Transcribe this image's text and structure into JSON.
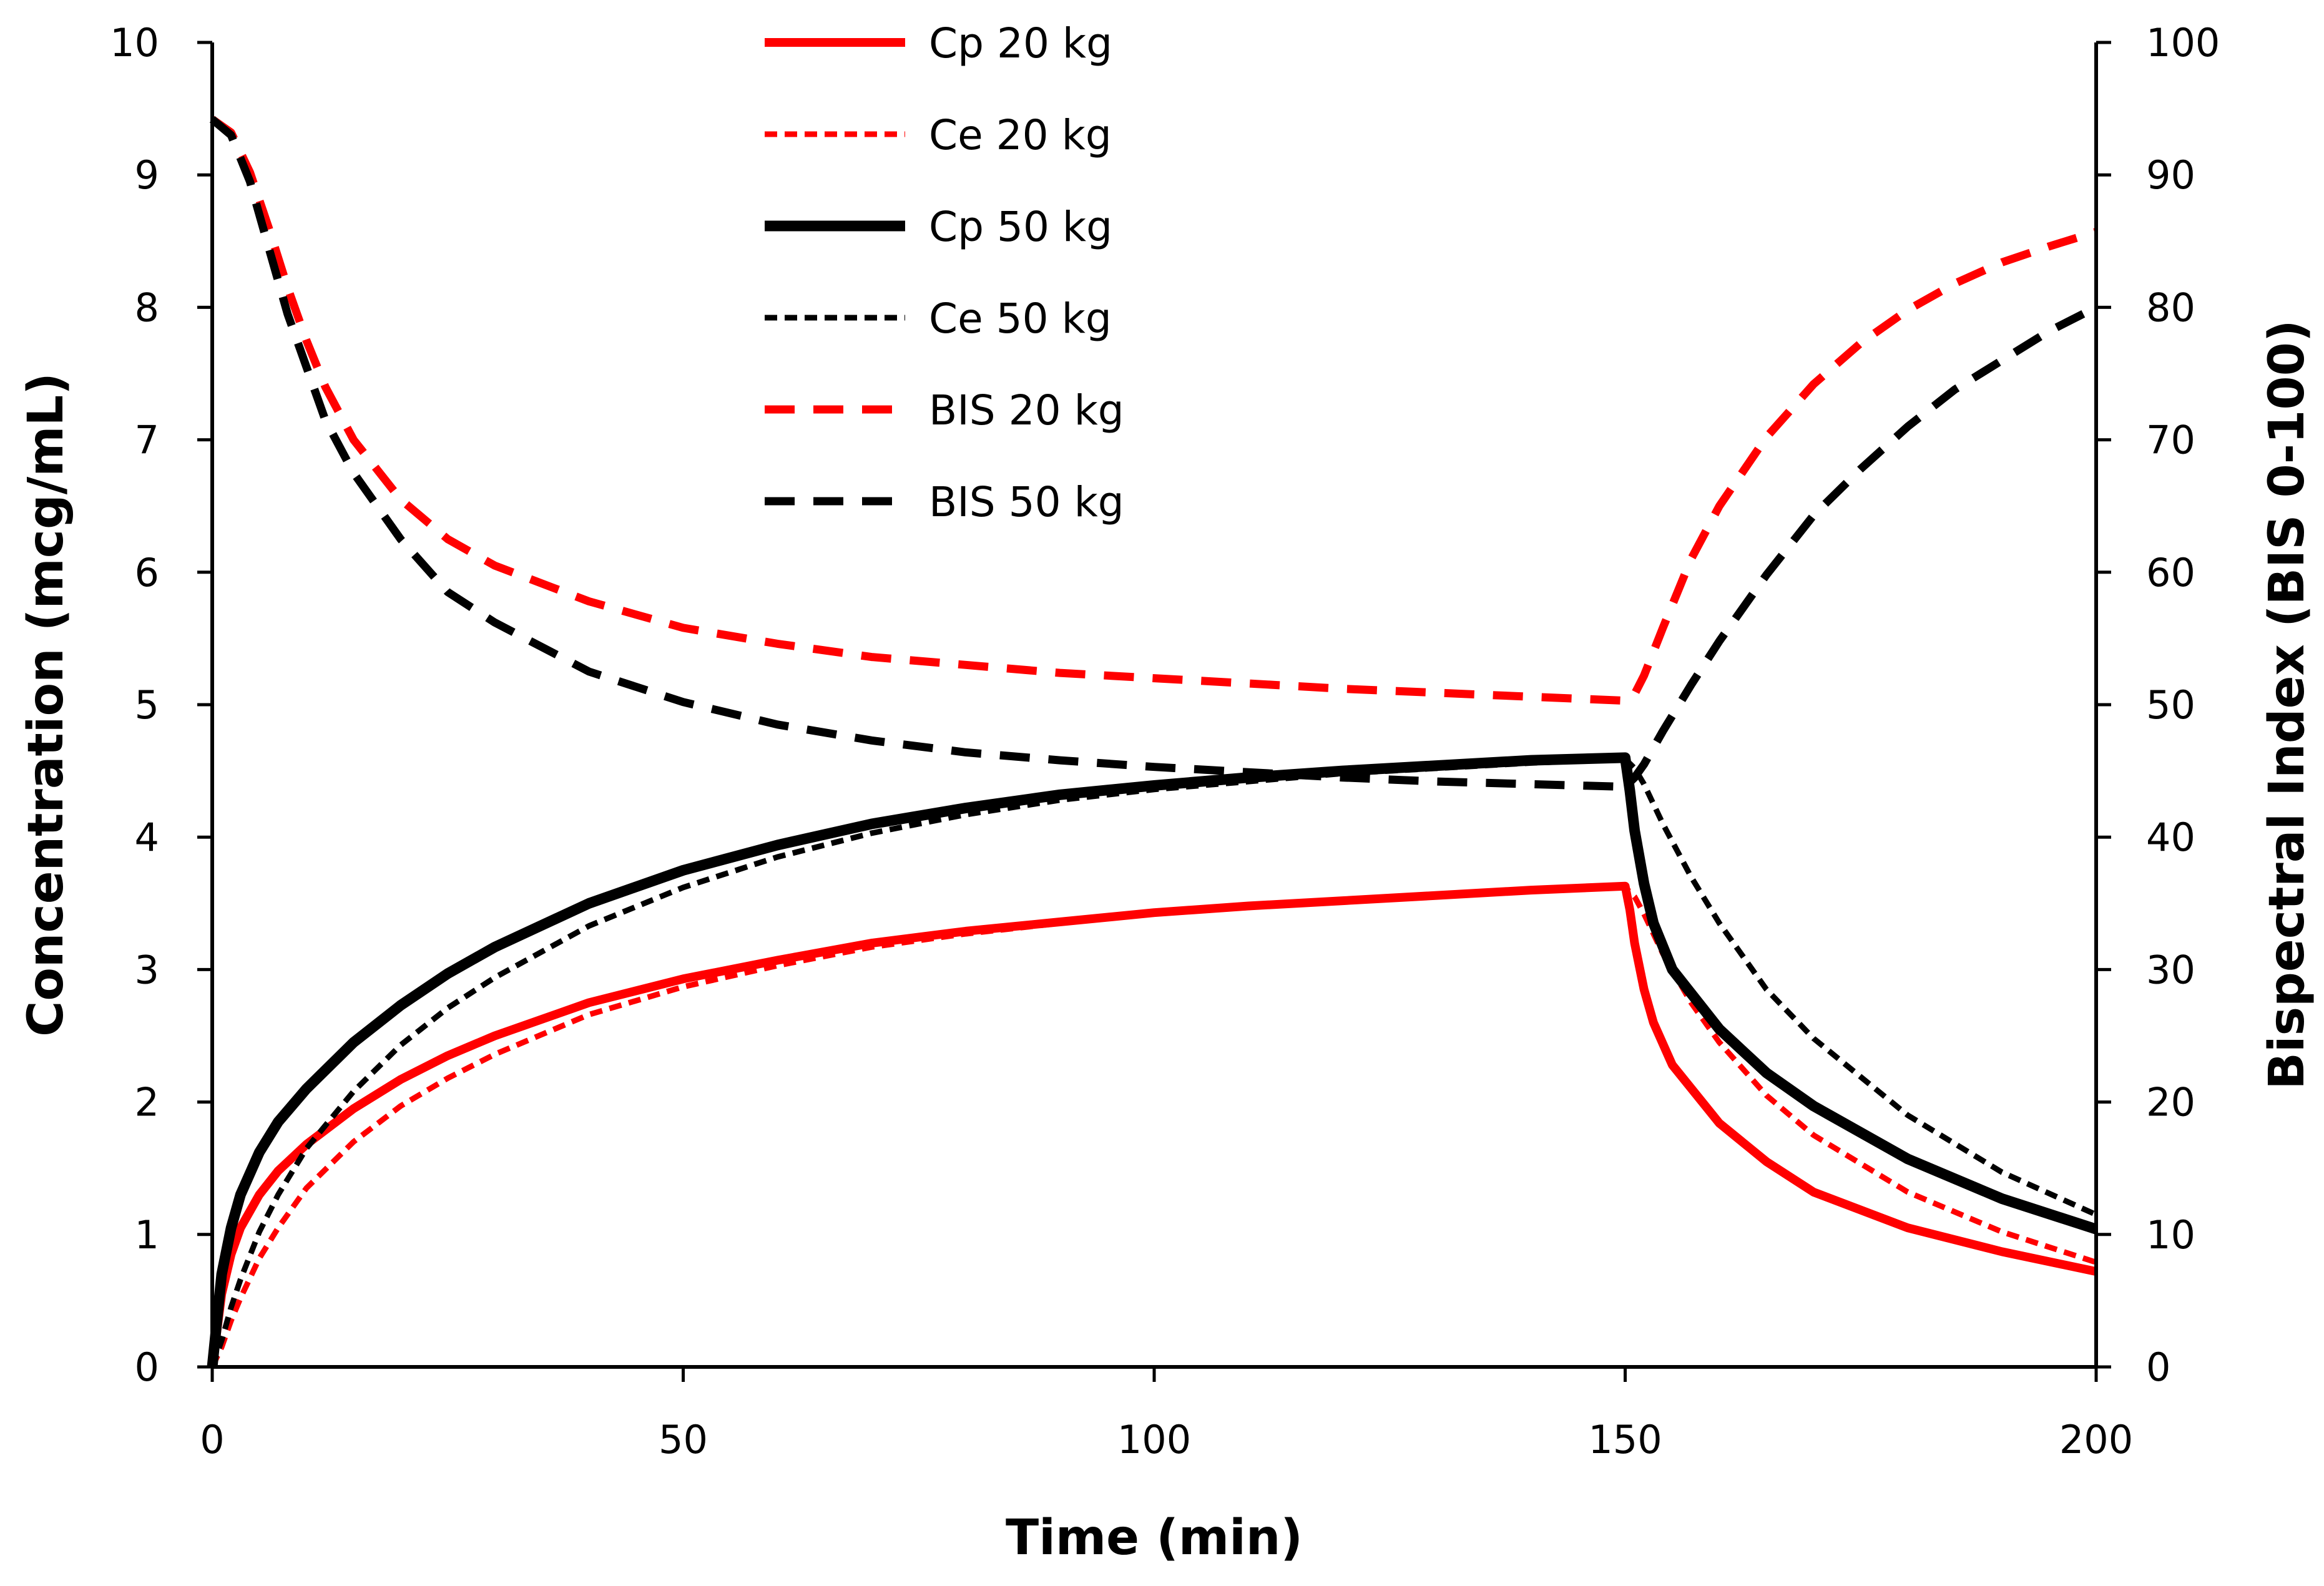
{
  "chart_data": {
    "type": "line",
    "title": "",
    "xlabel": "Time (min)",
    "ylabel_left": "Concentration (mcg/mL)",
    "ylabel_right": "Bispectral Index (BIS 0-100)",
    "xlim": [
      0,
      200
    ],
    "ylim_left": [
      0,
      10
    ],
    "ylim_right": [
      0,
      100
    ],
    "x_ticks": [
      0,
      50,
      100,
      150,
      200
    ],
    "y_left_ticks": [
      0,
      1,
      2,
      3,
      4,
      5,
      6,
      7,
      8,
      9,
      10
    ],
    "y_right_ticks": [
      0,
      10,
      20,
      30,
      40,
      50,
      60,
      70,
      80,
      90,
      100
    ],
    "grid": false,
    "legend_position": "top-center",
    "series": [
      {
        "name": "Cp 20 kg",
        "axis": "left",
        "color": "#ff0000",
        "style": "solid",
        "points": [
          [
            0,
            0
          ],
          [
            1,
            0.55
          ],
          [
            2,
            0.85
          ],
          [
            3,
            1.05
          ],
          [
            5,
            1.3
          ],
          [
            7,
            1.48
          ],
          [
            10,
            1.68
          ],
          [
            15,
            1.95
          ],
          [
            20,
            2.17
          ],
          [
            25,
            2.35
          ],
          [
            30,
            2.5
          ],
          [
            40,
            2.75
          ],
          [
            50,
            2.93
          ],
          [
            60,
            3.07
          ],
          [
            70,
            3.2
          ],
          [
            80,
            3.29
          ],
          [
            90,
            3.36
          ],
          [
            100,
            3.43
          ],
          [
            110,
            3.48
          ],
          [
            120,
            3.52
          ],
          [
            130,
            3.56
          ],
          [
            140,
            3.6
          ],
          [
            150,
            3.63
          ],
          [
            150.5,
            3.45
          ],
          [
            151,
            3.2
          ],
          [
            152,
            2.85
          ],
          [
            153,
            2.6
          ],
          [
            155,
            2.28
          ],
          [
            160,
            1.84
          ],
          [
            165,
            1.55
          ],
          [
            170,
            1.32
          ],
          [
            180,
            1.05
          ],
          [
            190,
            0.87
          ],
          [
            200,
            0.72
          ]
        ]
      },
      {
        "name": "Ce 20 kg",
        "axis": "left",
        "color": "#ff0000",
        "style": "short-dash",
        "points": [
          [
            0,
            0
          ],
          [
            1,
            0.15
          ],
          [
            2,
            0.35
          ],
          [
            3,
            0.52
          ],
          [
            5,
            0.82
          ],
          [
            7,
            1.05
          ],
          [
            10,
            1.35
          ],
          [
            15,
            1.7
          ],
          [
            20,
            1.97
          ],
          [
            25,
            2.18
          ],
          [
            30,
            2.36
          ],
          [
            40,
            2.66
          ],
          [
            50,
            2.87
          ],
          [
            60,
            3.03
          ],
          [
            70,
            3.17
          ],
          [
            80,
            3.27
          ],
          [
            90,
            3.35
          ],
          [
            100,
            3.42
          ],
          [
            110,
            3.47
          ],
          [
            120,
            3.52
          ],
          [
            130,
            3.56
          ],
          [
            140,
            3.59
          ],
          [
            150,
            3.62
          ],
          [
            151,
            3.55
          ],
          [
            152,
            3.42
          ],
          [
            154,
            3.12
          ],
          [
            157,
            2.75
          ],
          [
            160,
            2.45
          ],
          [
            165,
            2.05
          ],
          [
            170,
            1.75
          ],
          [
            180,
            1.32
          ],
          [
            190,
            1.02
          ],
          [
            200,
            0.79
          ]
        ]
      },
      {
        "name": "Cp 50 kg",
        "axis": "left",
        "color": "#000000",
        "style": "solid",
        "points": [
          [
            0,
            0
          ],
          [
            1,
            0.7
          ],
          [
            2,
            1.05
          ],
          [
            3,
            1.3
          ],
          [
            5,
            1.62
          ],
          [
            7,
            1.85
          ],
          [
            10,
            2.1
          ],
          [
            15,
            2.45
          ],
          [
            20,
            2.73
          ],
          [
            25,
            2.97
          ],
          [
            30,
            3.17
          ],
          [
            40,
            3.5
          ],
          [
            50,
            3.75
          ],
          [
            60,
            3.94
          ],
          [
            70,
            4.1
          ],
          [
            80,
            4.22
          ],
          [
            90,
            4.32
          ],
          [
            100,
            4.39
          ],
          [
            110,
            4.45
          ],
          [
            120,
            4.5
          ],
          [
            130,
            4.54
          ],
          [
            140,
            4.58
          ],
          [
            150,
            4.6
          ],
          [
            150.5,
            4.35
          ],
          [
            151,
            4.05
          ],
          [
            152,
            3.65
          ],
          [
            153,
            3.35
          ],
          [
            155,
            3.0
          ],
          [
            160,
            2.55
          ],
          [
            165,
            2.22
          ],
          [
            170,
            1.97
          ],
          [
            180,
            1.57
          ],
          [
            190,
            1.27
          ],
          [
            200,
            1.04
          ]
        ]
      },
      {
        "name": "Ce 50 kg",
        "axis": "left",
        "color": "#000000",
        "style": "short-dash",
        "points": [
          [
            0,
            0
          ],
          [
            1,
            0.2
          ],
          [
            2,
            0.45
          ],
          [
            3,
            0.66
          ],
          [
            5,
            1.02
          ],
          [
            7,
            1.3
          ],
          [
            10,
            1.65
          ],
          [
            15,
            2.08
          ],
          [
            20,
            2.43
          ],
          [
            25,
            2.71
          ],
          [
            30,
            2.94
          ],
          [
            40,
            3.33
          ],
          [
            50,
            3.62
          ],
          [
            60,
            3.85
          ],
          [
            70,
            4.03
          ],
          [
            80,
            4.17
          ],
          [
            90,
            4.28
          ],
          [
            100,
            4.36
          ],
          [
            110,
            4.42
          ],
          [
            120,
            4.48
          ],
          [
            130,
            4.52
          ],
          [
            140,
            4.56
          ],
          [
            150,
            4.59
          ],
          [
            151,
            4.52
          ],
          [
            152,
            4.4
          ],
          [
            154,
            4.1
          ],
          [
            157,
            3.7
          ],
          [
            160,
            3.35
          ],
          [
            165,
            2.85
          ],
          [
            170,
            2.48
          ],
          [
            180,
            1.9
          ],
          [
            190,
            1.47
          ],
          [
            200,
            1.15
          ]
        ]
      },
      {
        "name": "BIS 20 kg",
        "axis": "right",
        "color": "#ff0000",
        "style": "long-dash",
        "points": [
          [
            0,
            94.2
          ],
          [
            2,
            93.2
          ],
          [
            4,
            90.2
          ],
          [
            6,
            86.0
          ],
          [
            8,
            81.5
          ],
          [
            10,
            77.5
          ],
          [
            12,
            74.0
          ],
          [
            15,
            70.0
          ],
          [
            20,
            65.5
          ],
          [
            25,
            62.5
          ],
          [
            30,
            60.5
          ],
          [
            40,
            57.8
          ],
          [
            50,
            55.8
          ],
          [
            60,
            54.6
          ],
          [
            70,
            53.6
          ],
          [
            80,
            53.0
          ],
          [
            90,
            52.4
          ],
          [
            100,
            52.0
          ],
          [
            110,
            51.6
          ],
          [
            120,
            51.2
          ],
          [
            130,
            50.9
          ],
          [
            140,
            50.6
          ],
          [
            150,
            50.3
          ],
          [
            151,
            50.8
          ],
          [
            152,
            52.2
          ],
          [
            154,
            55.8
          ],
          [
            157,
            61.0
          ],
          [
            160,
            65.0
          ],
          [
            165,
            70.2
          ],
          [
            170,
            74.2
          ],
          [
            175,
            77.3
          ],
          [
            180,
            79.8
          ],
          [
            185,
            81.8
          ],
          [
            190,
            83.4
          ],
          [
            195,
            84.6
          ],
          [
            200,
            85.7
          ]
        ]
      },
      {
        "name": "BIS 50 kg",
        "axis": "right",
        "color": "#000000",
        "style": "long-dash",
        "points": [
          [
            0,
            94.2
          ],
          [
            2,
            93.0
          ],
          [
            4,
            89.5
          ],
          [
            6,
            84.5
          ],
          [
            8,
            79.5
          ],
          [
            10,
            75.5
          ],
          [
            12,
            71.5
          ],
          [
            15,
            67.5
          ],
          [
            20,
            62.5
          ],
          [
            25,
            58.5
          ],
          [
            30,
            56.2
          ],
          [
            40,
            52.5
          ],
          [
            50,
            50.2
          ],
          [
            60,
            48.5
          ],
          [
            70,
            47.3
          ],
          [
            80,
            46.4
          ],
          [
            90,
            45.8
          ],
          [
            100,
            45.3
          ],
          [
            110,
            44.9
          ],
          [
            120,
            44.5
          ],
          [
            130,
            44.2
          ],
          [
            140,
            44.0
          ],
          [
            150,
            43.8
          ],
          [
            151,
            44.5
          ],
          [
            152,
            45.5
          ],
          [
            154,
            48.0
          ],
          [
            157,
            51.5
          ],
          [
            160,
            54.8
          ],
          [
            165,
            59.8
          ],
          [
            170,
            64.3
          ],
          [
            175,
            67.8
          ],
          [
            180,
            71.0
          ],
          [
            185,
            73.8
          ],
          [
            190,
            76.0
          ],
          [
            195,
            78.2
          ],
          [
            200,
            80.0
          ]
        ]
      }
    ]
  }
}
